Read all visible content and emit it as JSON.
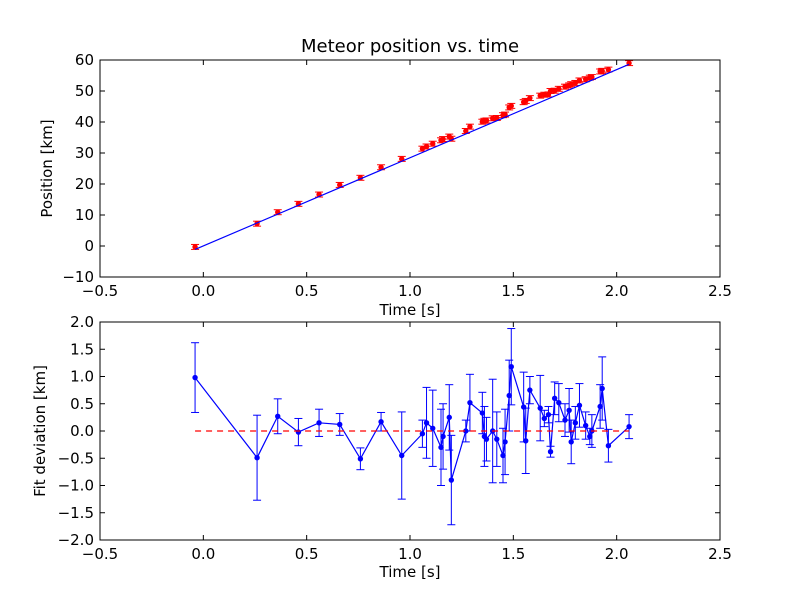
{
  "chart_data": [
    {
      "type": "scatter",
      "title": "Meteor position vs. time",
      "xlabel": "Time [s]",
      "ylabel": "Position [km]",
      "xlim": [
        -0.5,
        2.5
      ],
      "ylim": [
        -10,
        60
      ],
      "xticks": [
        -0.5,
        0.0,
        0.5,
        1.0,
        1.5,
        2.0,
        2.5
      ],
      "xtick_labels": [
        "−0.5",
        "0.0",
        "0.5",
        "1.0",
        "1.5",
        "2.0",
        "2.5"
      ],
      "yticks": [
        -10,
        0,
        10,
        20,
        30,
        40,
        50,
        60
      ],
      "ytick_labels": [
        "−10",
        "0",
        "10",
        "20",
        "30",
        "40",
        "50",
        "60"
      ],
      "grid": false,
      "series": [
        {
          "kind": "errorbar-points",
          "color": "#ff0000",
          "x": [
            -0.04,
            0.26,
            0.36,
            0.46,
            0.56,
            0.66,
            0.76,
            0.86,
            0.96,
            1.06,
            1.08,
            1.11,
            1.15,
            1.16,
            1.19,
            1.2,
            1.27,
            1.29,
            1.35,
            1.36,
            1.37,
            1.4,
            1.42,
            1.45,
            1.46,
            1.48,
            1.49,
            1.55,
            1.56,
            1.58,
            1.63,
            1.65,
            1.67,
            1.68,
            1.7,
            1.72,
            1.75,
            1.77,
            1.78,
            1.8,
            1.82,
            1.85,
            1.87,
            1.88,
            1.92,
            1.93,
            1.96,
            2.06
          ],
          "y": [
            -0.3,
            7.2,
            10.9,
            13.6,
            16.6,
            19.7,
            22.0,
            25.4,
            28.1,
            31.4,
            32.1,
            33.0,
            34.1,
            34.5,
            35.3,
            34.6,
            37.1,
            38.5,
            40.1,
            40.4,
            40.5,
            41.2,
            41.3,
            42.2,
            42.4,
            44.7,
            45.2,
            46.4,
            46.8,
            47.7,
            48.5,
            48.8,
            48.9,
            50.0,
            50.1,
            50.7,
            51.4,
            51.8,
            52.2,
            52.6,
            53.4,
            53.8,
            54.3,
            54.5,
            56.3,
            56.5,
            56.9,
            59.0
          ],
          "yerr": 0.8
        },
        {
          "kind": "fit-line",
          "color": "#0000ff",
          "x": [
            -0.04,
            2.06
          ],
          "y": [
            -1.1,
            58.6
          ]
        }
      ]
    },
    {
      "type": "scatter",
      "xlabel": "Time [s]",
      "ylabel": "Fit deviation [km]",
      "xlim": [
        -0.5,
        2.5
      ],
      "ylim": [
        -2.0,
        2.0
      ],
      "xticks": [
        -0.5,
        0.0,
        0.5,
        1.0,
        1.5,
        2.0,
        2.5
      ],
      "xtick_labels": [
        "−0.5",
        "0.0",
        "0.5",
        "1.0",
        "1.5",
        "2.0",
        "2.5"
      ],
      "yticks": [
        -2.0,
        -1.5,
        -1.0,
        -0.5,
        0.0,
        0.5,
        1.0,
        1.5,
        2.0
      ],
      "ytick_labels": [
        "−2.0",
        "−1.5",
        "−1.0",
        "−0.5",
        "0.0",
        "0.5",
        "1.0",
        "1.5",
        "2.0"
      ],
      "grid": false,
      "series": [
        {
          "kind": "errorbar-line",
          "color": "#0000ff",
          "x": [
            -0.04,
            0.26,
            0.36,
            0.46,
            0.56,
            0.66,
            0.76,
            0.86,
            0.96,
            1.06,
            1.08,
            1.11,
            1.15,
            1.16,
            1.19,
            1.2,
            1.27,
            1.29,
            1.35,
            1.36,
            1.37,
            1.4,
            1.42,
            1.45,
            1.46,
            1.48,
            1.49,
            1.55,
            1.56,
            1.58,
            1.63,
            1.65,
            1.67,
            1.68,
            1.7,
            1.72,
            1.75,
            1.77,
            1.78,
            1.8,
            1.82,
            1.85,
            1.87,
            1.88,
            1.92,
            1.93,
            1.96,
            2.06
          ],
          "y": [
            0.98,
            -0.49,
            0.27,
            -0.02,
            0.15,
            0.12,
            -0.51,
            0.17,
            -0.45,
            -0.05,
            0.15,
            0.05,
            -0.3,
            -0.1,
            0.25,
            -0.9,
            0.0,
            0.52,
            0.33,
            -0.1,
            -0.15,
            0.0,
            -0.15,
            -0.45,
            -0.2,
            0.65,
            1.18,
            0.44,
            -0.18,
            0.75,
            0.42,
            0.23,
            0.3,
            -0.38,
            0.6,
            0.52,
            0.2,
            0.38,
            -0.2,
            0.15,
            0.47,
            0.1,
            -0.1,
            0.0,
            0.45,
            0.78,
            -0.27,
            0.08
          ],
          "yerr": [
            0.64,
            0.78,
            0.32,
            0.25,
            0.25,
            0.2,
            0.2,
            0.17,
            0.8,
            0.25,
            0.65,
            0.7,
            0.7,
            0.6,
            0.6,
            0.82,
            0.2,
            0.52,
            0.38,
            0.55,
            0.4,
            0.95,
            0.5,
            0.5,
            0.6,
            0.65,
            0.7,
            0.64,
            0.6,
            0.25,
            0.6,
            0.15,
            0.15,
            0.1,
            0.3,
            0.35,
            0.3,
            0.4,
            0.4,
            0.3,
            0.4,
            0.25,
            0.15,
            0.3,
            0.4,
            0.58,
            0.3,
            0.22
          ]
        },
        {
          "kind": "zero-line",
          "color": "#ff0000",
          "style": "dashed",
          "x": [
            -0.04,
            2.06
          ],
          "y": [
            0,
            0
          ]
        }
      ]
    }
  ]
}
